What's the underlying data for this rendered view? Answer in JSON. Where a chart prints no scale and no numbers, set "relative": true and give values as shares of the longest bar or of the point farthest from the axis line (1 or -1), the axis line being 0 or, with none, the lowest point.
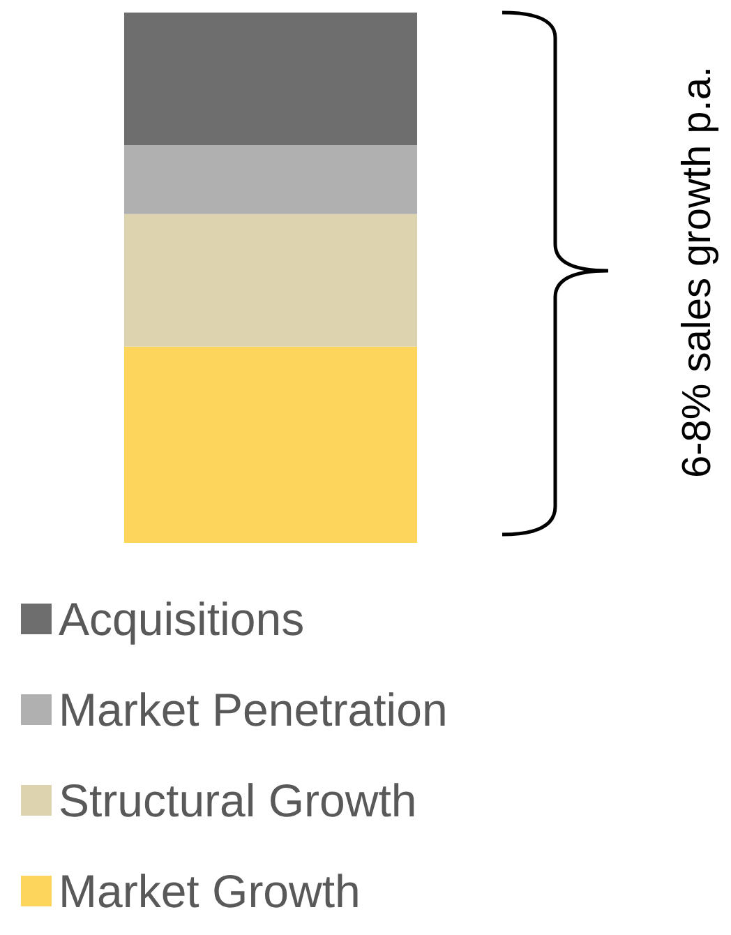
{
  "chart_data": {
    "type": "bar",
    "stacked": true,
    "relative": true,
    "tick_labels": false,
    "legend": "bottom",
    "categories": [
      null
    ],
    "series": [
      {
        "name": "Market Growth",
        "color": "#fdd55a",
        "values": [
          0.37
        ]
      },
      {
        "name": "Structural Growth",
        "color": "#ddd3ae",
        "values": [
          0.25
        ]
      },
      {
        "name": "Market Penetration",
        "color": "#b0b0b0",
        "values": [
          0.13
        ]
      },
      {
        "name": "Acquisitions",
        "color": "#6e6e6e",
        "values": [
          0.25
        ]
      }
    ],
    "annotations": [
      "6-8% sales growth p.a."
    ]
  }
}
